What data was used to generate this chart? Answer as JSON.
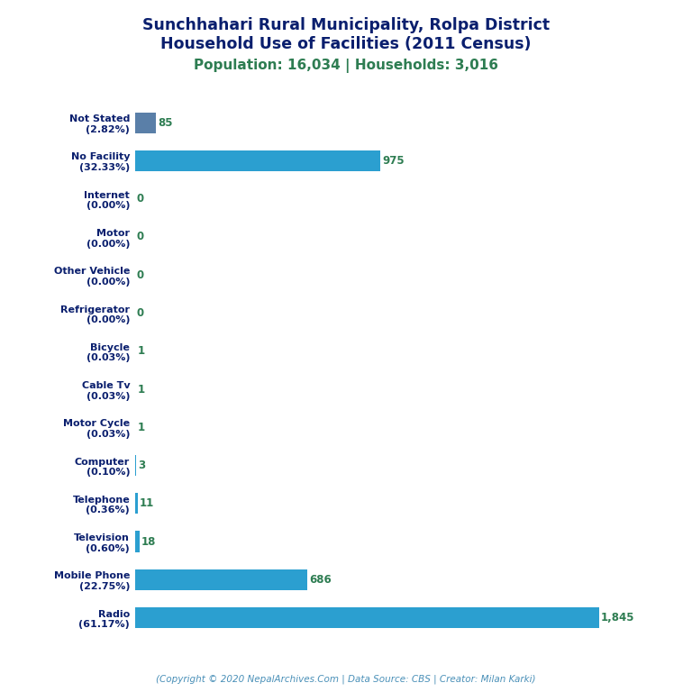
{
  "title_line1": "Sunchhahari Rural Municipality, Rolpa District",
  "title_line2": "Household Use of Facilities (2011 Census)",
  "subtitle": "Population: 16,034 | Households: 3,016",
  "copyright": "(Copyright © 2020 NepalArchives.Com | Data Source: CBS | Creator: Milan Karki)",
  "categories": [
    "Not Stated\n(2.82%)",
    "No Facility\n(32.33%)",
    "Internet\n(0.00%)",
    "Motor\n(0.00%)",
    "Other Vehicle\n(0.00%)",
    "Refrigerator\n(0.00%)",
    "Bicycle\n(0.03%)",
    "Cable Tv\n(0.03%)",
    "Motor Cycle\n(0.03%)",
    "Computer\n(0.10%)",
    "Telephone\n(0.36%)",
    "Television\n(0.60%)",
    "Mobile Phone\n(22.75%)",
    "Radio\n(61.17%)"
  ],
  "values": [
    85,
    975,
    0,
    0,
    0,
    0,
    1,
    1,
    1,
    3,
    11,
    18,
    686,
    1845
  ],
  "bar_color_main": "#2B9FD0",
  "bar_color_stated": "#5a7fa8",
  "value_color": "#2e7d52",
  "title_color": "#0a1f6e",
  "subtitle_color": "#2e7d52",
  "copyright_color": "#4a90b8",
  "background_color": "#ffffff",
  "xlim": [
    0,
    2050
  ]
}
